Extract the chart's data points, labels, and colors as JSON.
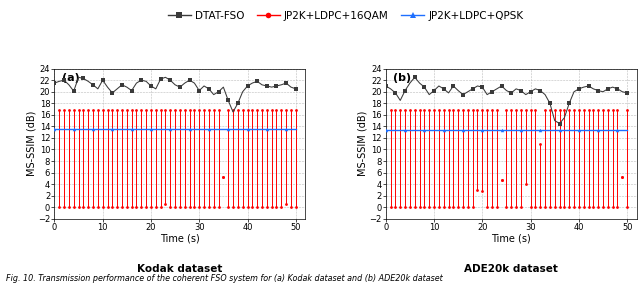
{
  "legend_labels": [
    "DTAT-FSO",
    "JP2K+LDPC+16QAM",
    "JP2K+LDPC+QPSK"
  ],
  "subplot_a_label": "(a)",
  "subplot_b_label": "(b)",
  "xlabel": "Time (s)",
  "ylabel": "MS-SSIM (dB)",
  "xlabel_a": "Kodak dataset",
  "xlabel_b": "ADE20k dataset",
  "ylim": [
    -2,
    24
  ],
  "yticks": [
    -2,
    0,
    2,
    4,
    6,
    8,
    10,
    12,
    14,
    16,
    18,
    20,
    22,
    24
  ],
  "xlim": [
    0,
    52
  ],
  "xticks": [
    0,
    10,
    20,
    30,
    40,
    50
  ],
  "blue_level_a": 13.5,
  "blue_level_b": 13.3,
  "dtat_a_x": [
    0,
    1,
    2,
    3,
    4,
    5,
    6,
    7,
    8,
    9,
    10,
    11,
    12,
    13,
    14,
    15,
    16,
    17,
    18,
    19,
    20,
    21,
    22,
    23,
    24,
    25,
    26,
    27,
    28,
    29,
    30,
    31,
    32,
    33,
    34,
    35,
    36,
    37,
    38,
    39,
    40,
    41,
    42,
    43,
    44,
    45,
    46,
    47,
    48,
    49,
    50
  ],
  "dtat_a_y": [
    21.5,
    21.8,
    22.0,
    21.2,
    20.1,
    22.5,
    22.3,
    21.8,
    21.2,
    20.5,
    22.0,
    20.8,
    19.8,
    20.5,
    21.2,
    20.8,
    20.2,
    21.5,
    22.0,
    21.8,
    21.0,
    20.5,
    22.2,
    22.5,
    22.0,
    21.2,
    20.8,
    21.5,
    22.0,
    21.5,
    20.2,
    21.0,
    20.5,
    19.5,
    20.0,
    20.8,
    18.5,
    16.5,
    18.0,
    20.0,
    21.0,
    21.5,
    21.8,
    21.2,
    21.0,
    20.8,
    21.0,
    21.2,
    21.5,
    20.8,
    20.5
  ],
  "dtat_b_x": [
    0,
    1,
    2,
    3,
    4,
    5,
    6,
    7,
    8,
    9,
    10,
    11,
    12,
    13,
    14,
    15,
    16,
    17,
    18,
    19,
    20,
    21,
    22,
    23,
    24,
    25,
    26,
    27,
    28,
    29,
    30,
    31,
    32,
    33,
    34,
    35,
    36,
    37,
    38,
    39,
    40,
    41,
    42,
    43,
    44,
    45,
    46,
    47,
    48,
    49,
    50
  ],
  "dtat_b_y": [
    21.0,
    20.5,
    19.8,
    18.5,
    20.2,
    21.5,
    22.5,
    21.5,
    20.8,
    19.5,
    20.2,
    21.0,
    20.5,
    19.8,
    21.0,
    20.2,
    19.5,
    20.0,
    20.5,
    21.0,
    20.8,
    19.5,
    20.0,
    20.5,
    21.0,
    20.2,
    19.8,
    20.5,
    20.2,
    19.5,
    20.0,
    20.5,
    20.2,
    19.5,
    18.0,
    15.0,
    14.5,
    15.5,
    18.0,
    20.0,
    20.5,
    20.8,
    21.0,
    20.5,
    20.2,
    20.0,
    20.5,
    20.8,
    20.5,
    20.0,
    19.8
  ],
  "red_a_x": [
    1,
    2,
    3,
    4,
    5,
    6,
    7,
    8,
    9,
    10,
    11,
    12,
    13,
    14,
    15,
    16,
    17,
    18,
    19,
    20,
    21,
    22,
    23,
    24,
    25,
    26,
    27,
    28,
    29,
    30,
    31,
    32,
    33,
    34,
    35,
    36,
    37,
    38,
    39,
    40,
    41,
    42,
    43,
    44,
    45,
    46,
    47,
    48,
    49,
    50
  ],
  "red_a_top": [
    16.8,
    16.8,
    16.8,
    16.8,
    16.8,
    16.8,
    16.8,
    16.8,
    16.8,
    16.8,
    16.8,
    16.8,
    16.8,
    16.8,
    16.8,
    16.8,
    16.8,
    16.8,
    16.8,
    16.8,
    16.8,
    16.8,
    16.8,
    16.8,
    16.8,
    16.8,
    16.8,
    16.8,
    16.8,
    16.8,
    16.8,
    16.8,
    16.8,
    16.8,
    5.2,
    16.8,
    16.8,
    16.8,
    16.8,
    16.8,
    16.8,
    16.8,
    16.8,
    16.8,
    16.8,
    16.8,
    16.8,
    16.8,
    16.8,
    16.8
  ],
  "red_a_bot": [
    0.0,
    0.0,
    0.0,
    0.0,
    0.0,
    0.0,
    0.0,
    0.0,
    0.0,
    0.0,
    0.0,
    0.0,
    0.0,
    0.0,
    0.0,
    0.0,
    0.0,
    0.0,
    0.0,
    0.0,
    0.0,
    0.0,
    0.5,
    0.0,
    0.0,
    0.0,
    0.0,
    0.0,
    0.0,
    0.0,
    0.0,
    0.0,
    0.0,
    0.0,
    5.2,
    0.0,
    0.0,
    0.0,
    0.0,
    0.0,
    0.0,
    0.0,
    0.0,
    0.0,
    0.0,
    0.0,
    0.0,
    0.5,
    0.0,
    0.0
  ],
  "red_b_x": [
    1,
    2,
    3,
    4,
    5,
    6,
    7,
    8,
    9,
    10,
    11,
    12,
    13,
    14,
    15,
    16,
    17,
    18,
    19,
    20,
    21,
    22,
    23,
    24,
    25,
    26,
    27,
    28,
    29,
    30,
    31,
    32,
    33,
    34,
    35,
    36,
    37,
    38,
    39,
    40,
    41,
    42,
    43,
    44,
    45,
    46,
    47,
    48,
    49,
    50
  ],
  "red_b_top": [
    16.8,
    16.8,
    16.8,
    16.8,
    16.8,
    16.8,
    16.8,
    16.8,
    16.8,
    16.8,
    16.8,
    16.8,
    16.8,
    16.8,
    16.8,
    16.8,
    16.8,
    16.8,
    16.8,
    16.8,
    16.8,
    16.8,
    16.8,
    4.8,
    16.8,
    16.8,
    16.8,
    16.8,
    16.8,
    16.8,
    16.8,
    11.0,
    16.8,
    16.8,
    16.8,
    16.8,
    16.8,
    16.8,
    16.8,
    16.8,
    16.8,
    16.8,
    16.8,
    16.8,
    16.8,
    16.8,
    16.8,
    16.8,
    5.2,
    16.8
  ],
  "red_b_bot": [
    0.0,
    0.0,
    0.0,
    0.0,
    0.0,
    0.0,
    0.0,
    0.0,
    0.0,
    0.0,
    0.0,
    0.0,
    0.0,
    0.0,
    0.0,
    0.0,
    0.0,
    0.0,
    3.0,
    2.8,
    0.0,
    0.0,
    0.0,
    4.8,
    0.0,
    0.0,
    0.0,
    0.0,
    4.0,
    0.0,
    0.0,
    0.0,
    0.0,
    0.0,
    0.0,
    0.0,
    0.0,
    0.0,
    0.0,
    0.0,
    0.0,
    0.0,
    0.0,
    0.0,
    0.0,
    0.0,
    0.0,
    0.0,
    5.2,
    0.0
  ],
  "dtat_color": "#3a3a3a",
  "red_color": "#ff0000",
  "blue_color": "#1e6fff",
  "grid_color": "#bbbbbb",
  "bg_color": "#ffffff"
}
